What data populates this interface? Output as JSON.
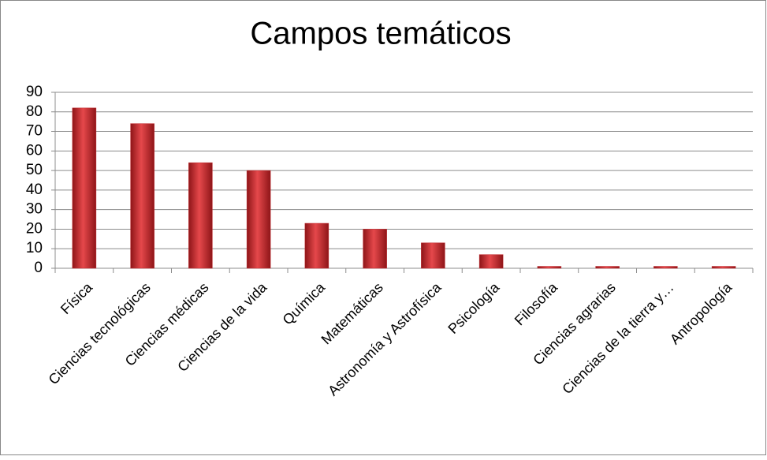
{
  "chart_data": {
    "type": "bar",
    "title": "Campos temáticos",
    "categories": [
      "Física",
      "Ciencias tecnológicas",
      "Ciencias médicas",
      "Ciencias de la vida",
      "Química",
      "Matemáticas",
      "Astronomía y Astrofísica",
      "Psicología",
      "Filosofía",
      "Ciencias agrarias",
      "Ciencias de la tierra y…",
      "Antropología"
    ],
    "values": [
      82,
      74,
      54,
      50,
      23,
      20,
      13,
      7,
      1,
      1,
      1,
      1
    ],
    "color": "#c0282c",
    "ylim": [
      0,
      90
    ],
    "yticks": [
      0,
      10,
      20,
      30,
      40,
      50,
      60,
      70,
      80,
      90
    ],
    "grid": true
  }
}
